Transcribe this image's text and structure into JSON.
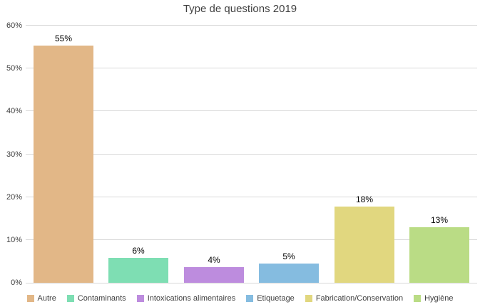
{
  "chart_data": {
    "type": "bar",
    "title": "Type de questions 2019",
    "categories": [
      "Autre",
      "Contaminants",
      "Intoxications alimentaires",
      "Etiquetage",
      "Fabrication/Conservation",
      "Hygiène"
    ],
    "values": [
      55.4,
      5.9,
      3.6,
      4.5,
      17.8,
      12.9
    ],
    "labels": [
      "55%",
      "6%",
      "4%",
      "5%",
      "18%",
      "13%"
    ],
    "colors": [
      "#e2b787",
      "#7edeb3",
      "#bd8cde",
      "#85bce0",
      "#e1d77f",
      "#badc85"
    ],
    "xlabel": "",
    "ylabel": "",
    "ylim": [
      0,
      60
    ],
    "yticks": [
      0,
      10,
      20,
      30,
      40,
      50,
      60
    ],
    "ytick_labels": [
      "0%",
      "10%",
      "20%",
      "30%",
      "40%",
      "50%",
      "60%"
    ],
    "grid": "horizontal",
    "gridline_color": "#d9d9d9",
    "legend_position": "bottom",
    "title_color": "#404040",
    "axis_label_color": "#404040",
    "data_label_color": "#000000"
  }
}
